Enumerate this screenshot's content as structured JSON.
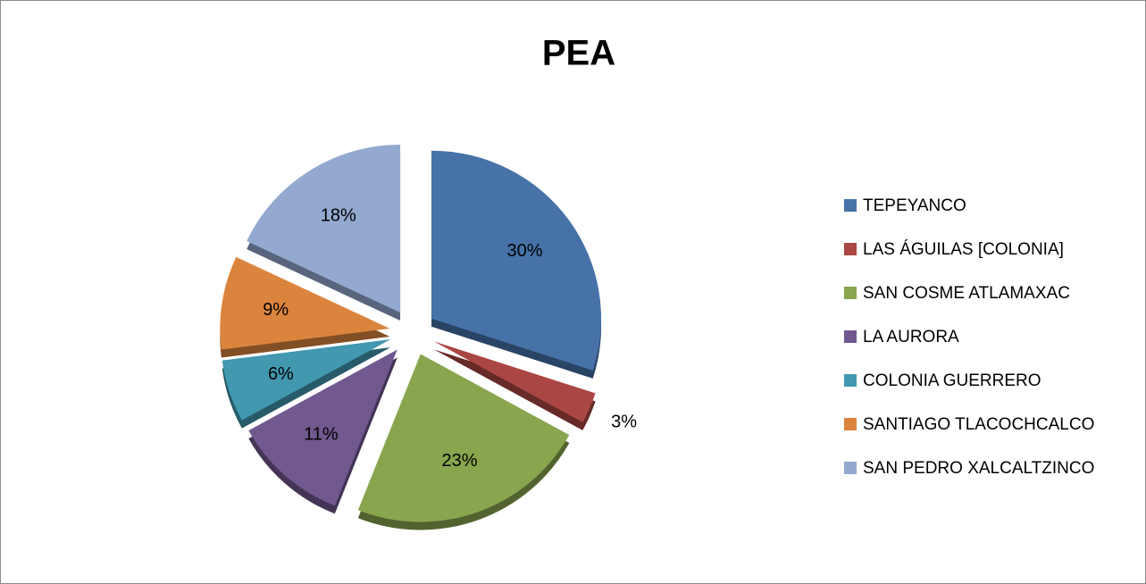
{
  "chart_data": {
    "type": "pie",
    "title": "PEA",
    "categories": [
      "TEPEYANCO",
      "LAS ÁGUILAS [COLONIA]",
      "SAN COSME ATLAMAXAC",
      "LA AURORA",
      "COLONIA GUERRERO",
      "SANTIAGO TLACOCHCALCO",
      "SAN PEDRO XALCALTZINCO"
    ],
    "values": [
      30,
      3,
      23,
      11,
      6,
      9,
      18
    ],
    "value_labels": [
      "30%",
      "3%",
      "23%",
      "11%",
      "6%",
      "9%",
      "18%"
    ],
    "colors": [
      "#4672a8",
      "#aa4643",
      "#89a54e",
      "#71588f",
      "#4198af",
      "#db843d",
      "#93a9cf"
    ],
    "legend": "right"
  }
}
